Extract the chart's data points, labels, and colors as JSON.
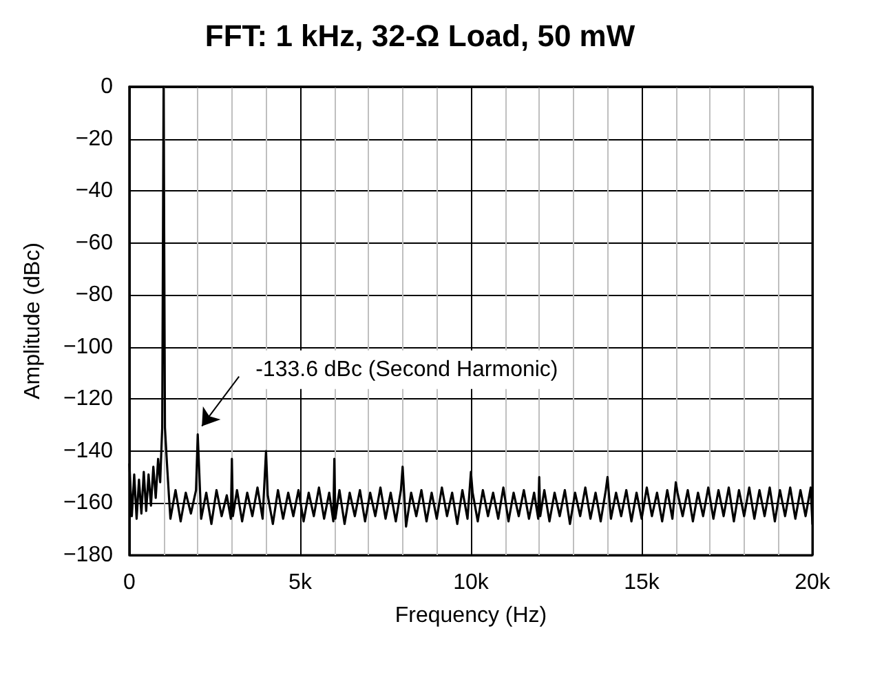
{
  "chart_data": {
    "type": "line",
    "title": "FFT: 1 kHz, 32-Ω Load, 50 mW",
    "xlabel": "Frequency (Hz)",
    "ylabel": "Amplitude (dBc)",
    "x": [
      0,
      70,
      140,
      210,
      280,
      350,
      420,
      490,
      560,
      630,
      700,
      770,
      840,
      900,
      960,
      1000,
      1040,
      1100,
      1160,
      1200,
      1350,
      1500,
      1650,
      1800,
      1950,
      2000,
      2100,
      2250,
      2400,
      2550,
      2700,
      2850,
      2970,
      3000,
      3030,
      3150,
      3300,
      3450,
      3600,
      3750,
      3900,
      4000,
      4050,
      4200,
      4350,
      4500,
      4650,
      4800,
      4950,
      5100,
      5250,
      5400,
      5550,
      5700,
      5850,
      5970,
      6000,
      6030,
      6150,
      6300,
      6450,
      6600,
      6750,
      6900,
      7050,
      7200,
      7350,
      7500,
      7650,
      7800,
      7950,
      8000,
      8100,
      8250,
      8400,
      8550,
      8700,
      8850,
      9000,
      9150,
      9300,
      9450,
      9600,
      9750,
      9900,
      10000,
      10050,
      10200,
      10350,
      10500,
      10650,
      10800,
      10950,
      11100,
      11250,
      11400,
      11550,
      11700,
      11850,
      11970,
      12000,
      12030,
      12150,
      12300,
      12450,
      12600,
      12750,
      12900,
      13050,
      13200,
      13350,
      13500,
      13650,
      13800,
      13950,
      14000,
      14100,
      14250,
      14400,
      14550,
      14700,
      14850,
      15000,
      15150,
      15300,
      15450,
      15600,
      15750,
      15900,
      16000,
      16050,
      16200,
      16350,
      16500,
      16650,
      16800,
      16950,
      17100,
      17250,
      17400,
      17550,
      17700,
      17850,
      18000,
      18150,
      18300,
      18450,
      18600,
      18750,
      18900,
      19050,
      19200,
      19350,
      19500,
      19650,
      19800,
      19950,
      20000
    ],
    "values": [
      -145,
      -165,
      -149,
      -166,
      -151,
      -164,
      -148,
      -163,
      -149,
      -161,
      -146,
      -158,
      -143,
      -152,
      -131,
      0,
      -131,
      -145,
      -158,
      -166,
      -155,
      -167,
      -156,
      -164,
      -155,
      -133.6,
      -166,
      -156,
      -168,
      -155,
      -165,
      -157,
      -166,
      -143,
      -165,
      -155,
      -167,
      -156,
      -165,
      -154,
      -166,
      -140,
      -157,
      -168,
      -155,
      -166,
      -156,
      -165,
      -155,
      -167,
      -156,
      -165,
      -154,
      -166,
      -156,
      -167,
      -143,
      -166,
      -155,
      -168,
      -156,
      -165,
      -155,
      -167,
      -156,
      -165,
      -154,
      -166,
      -156,
      -167,
      -155,
      -146,
      -169,
      -156,
      -165,
      -155,
      -167,
      -156,
      -166,
      -154,
      -165,
      -156,
      -168,
      -155,
      -166,
      -148,
      -156,
      -167,
      -155,
      -165,
      -156,
      -166,
      -154,
      -167,
      -156,
      -165,
      -155,
      -166,
      -156,
      -166,
      -150,
      -165,
      -155,
      -167,
      -156,
      -165,
      -155,
      -168,
      -156,
      -165,
      -154,
      -166,
      -156,
      -167,
      -155,
      -150,
      -166,
      -156,
      -165,
      -155,
      -167,
      -156,
      -166,
      -154,
      -165,
      -156,
      -167,
      -155,
      -166,
      -152,
      -156,
      -165,
      -155,
      -167,
      -156,
      -165,
      -154,
      -166,
      -155,
      -165,
      -154,
      -167,
      -155,
      -165,
      -154,
      -166,
      -155,
      -165,
      -154,
      -167,
      -155,
      -165,
      -154,
      -166,
      -155,
      -165,
      -154,
      -168
    ],
    "color": "#000000",
    "xlim": [
      0,
      20000
    ],
    "ylim": [
      -180,
      0
    ],
    "xticks": [
      0,
      {
        "value": 1000,
        "label": null
      },
      {
        "value": 2000,
        "label": null
      },
      {
        "value": 3000,
        "label": null
      },
      {
        "value": 4000,
        "label": null
      },
      {
        "value": 5000,
        "label": "5k"
      },
      {
        "value": 6000,
        "label": null
      },
      {
        "value": 7000,
        "label": null
      },
      {
        "value": 8000,
        "label": null
      },
      {
        "value": 9000,
        "label": null
      },
      {
        "value": 10000,
        "label": "10k"
      },
      {
        "value": 11000,
        "label": null
      },
      {
        "value": 12000,
        "label": null
      },
      {
        "value": 13000,
        "label": null
      },
      {
        "value": 14000,
        "label": null
      },
      {
        "value": 15000,
        "label": "15k"
      },
      {
        "value": 16000,
        "label": null
      },
      {
        "value": 17000,
        "label": null
      },
      {
        "value": 18000,
        "label": null
      },
      {
        "value": 19000,
        "label": null
      },
      {
        "value": 20000,
        "label": "20k"
      }
    ],
    "yticks": [
      {
        "value": -180,
        "label": "−180"
      },
      {
        "value": -160,
        "label": "−160"
      },
      {
        "value": -140,
        "label": "−140"
      },
      {
        "value": -120,
        "label": "−120"
      },
      {
        "value": -100,
        "label": "−100"
      },
      {
        "value": -80,
        "label": "−80"
      },
      {
        "value": -60,
        "label": "−60"
      },
      {
        "value": -40,
        "label": "−40"
      },
      {
        "value": -20,
        "label": "−20"
      },
      0
    ],
    "grid": true,
    "annotations": [
      {
        "text": "-133.6 dBc (Second Harmonic)",
        "x": 2000,
        "y": -133.6
      }
    ]
  }
}
